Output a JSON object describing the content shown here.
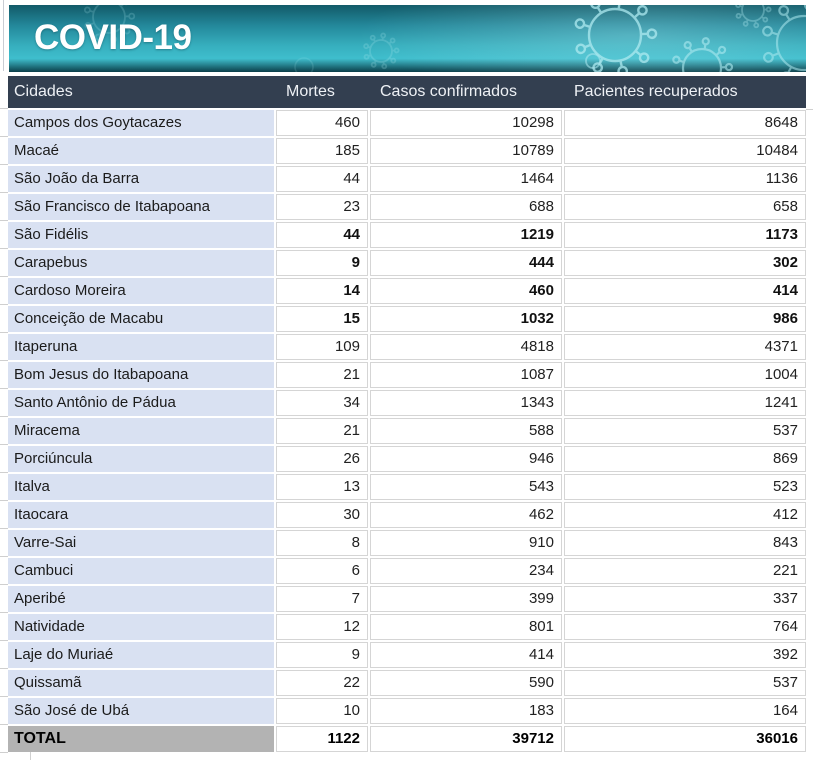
{
  "banner": {
    "title": "COVID-19"
  },
  "table": {
    "columns": [
      "Cidades",
      "Mortes",
      "Casos confirmados",
      "Pacientes recuperados"
    ],
    "rows": [
      {
        "city": "Campos dos Goytacazes",
        "mortes": "460",
        "casos": "10298",
        "recuperados": "8648",
        "bold": false
      },
      {
        "city": "Macaé",
        "mortes": "185",
        "casos": "10789",
        "recuperados": "10484",
        "bold": false
      },
      {
        "city": "São João da Barra",
        "mortes": "44",
        "casos": "1464",
        "recuperados": "1136",
        "bold": false
      },
      {
        "city": "São Francisco de Itabapoana",
        "mortes": "23",
        "casos": "688",
        "recuperados": "658",
        "bold": false
      },
      {
        "city": "São Fidélis",
        "mortes": "44",
        "casos": "1219",
        "recuperados": "1173",
        "bold": true
      },
      {
        "city": "Carapebus",
        "mortes": "9",
        "casos": "444",
        "recuperados": "302",
        "bold": true
      },
      {
        "city": "Cardoso Moreira",
        "mortes": "14",
        "casos": "460",
        "recuperados": "414",
        "bold": true
      },
      {
        "city": "Conceição de Macabu",
        "mortes": "15",
        "casos": "1032",
        "recuperados": "986",
        "bold": true
      },
      {
        "city": "Itaperuna",
        "mortes": "109",
        "casos": "4818",
        "recuperados": "4371",
        "bold": false
      },
      {
        "city": "Bom Jesus do Itabapoana",
        "mortes": "21",
        "casos": "1087",
        "recuperados": "1004",
        "bold": false
      },
      {
        "city": "Santo Antônio de Pádua",
        "mortes": "34",
        "casos": "1343",
        "recuperados": "1241",
        "bold": false
      },
      {
        "city": "Miracema",
        "mortes": "21",
        "casos": "588",
        "recuperados": "537",
        "bold": false
      },
      {
        "city": "Porciúncula",
        "mortes": "26",
        "casos": "946",
        "recuperados": "869",
        "bold": false
      },
      {
        "city": "Italva",
        "mortes": "13",
        "casos": "543",
        "recuperados": "523",
        "bold": false
      },
      {
        "city": "Itaocara",
        "mortes": "30",
        "casos": "462",
        "recuperados": "412",
        "bold": false
      },
      {
        "city": "Varre-Sai",
        "mortes": "8",
        "casos": "910",
        "recuperados": "843",
        "bold": false
      },
      {
        "city": "Cambuci",
        "mortes": "6",
        "casos": "234",
        "recuperados": "221",
        "bold": false
      },
      {
        "city": "Aperibé",
        "mortes": "7",
        "casos": "399",
        "recuperados": "337",
        "bold": false
      },
      {
        "city": "Natividade",
        "mortes": "12",
        "casos": "801",
        "recuperados": "764",
        "bold": false
      },
      {
        "city": "Laje do Muriaé",
        "mortes": "9",
        "casos": "414",
        "recuperados": "392",
        "bold": false
      },
      {
        "city": "Quissamã",
        "mortes": "22",
        "casos": "590",
        "recuperados": "537",
        "bold": false
      },
      {
        "city": "São José de Ubá",
        "mortes": "10",
        "casos": "183",
        "recuperados": "164",
        "bold": false
      }
    ],
    "total": {
      "label": "TOTAL",
      "mortes": "1122",
      "casos": "39712",
      "recuperados": "36016"
    }
  },
  "colors": {
    "header_bg": "#333F50",
    "city_cell_bg": "#D9E1F2",
    "total_label_bg": "#B3B3B3",
    "banner_teal": "#36AEBD",
    "virus_outline": "#AEEAF0"
  }
}
